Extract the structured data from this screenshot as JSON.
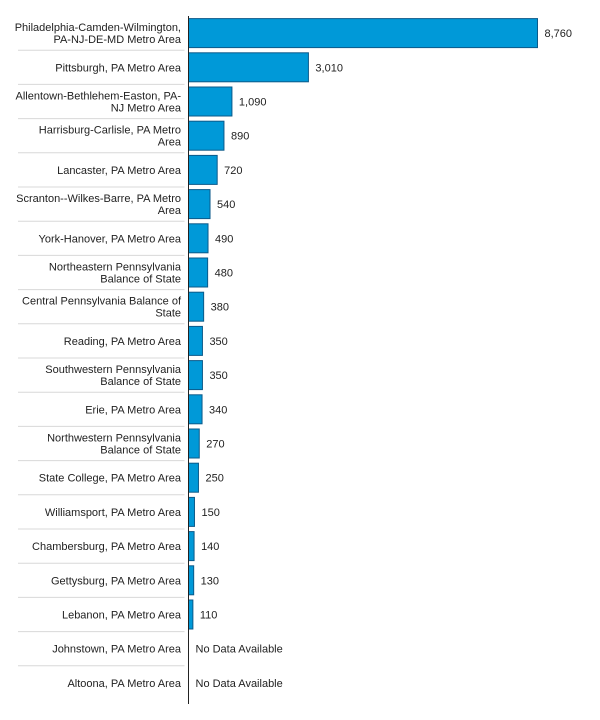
{
  "chart_data": {
    "type": "bar",
    "orientation": "horizontal",
    "title": "",
    "xlabel": "",
    "ylabel": "",
    "xlim": [
      0,
      8760
    ],
    "grid": false,
    "legend": "none",
    "bar_color": "#0099d8",
    "missing_label": "No Data Available",
    "categories": [
      [
        "Philadelphia-Camden-Wilmington,",
        "PA-NJ-DE-MD Metro Area"
      ],
      [
        "Pittsburgh, PA Metro Area"
      ],
      [
        "Allentown-Bethlehem-Easton, PA-",
        "NJ Metro Area"
      ],
      [
        "Harrisburg-Carlisle, PA Metro",
        "Area"
      ],
      [
        "Lancaster, PA Metro Area"
      ],
      [
        "Scranton--Wilkes-Barre, PA Metro",
        "Area"
      ],
      [
        "York-Hanover, PA Metro Area"
      ],
      [
        "Northeastern Pennsylvania",
        "Balance of State"
      ],
      [
        "Central Pennsylvania Balance of",
        "State"
      ],
      [
        "Reading, PA Metro Area"
      ],
      [
        "Southwestern Pennsylvania",
        "Balance of State"
      ],
      [
        "Erie, PA Metro Area"
      ],
      [
        "Northwestern Pennsylvania",
        "Balance of State"
      ],
      [
        "State College, PA Metro Area"
      ],
      [
        "Williamsport, PA Metro Area"
      ],
      [
        "Chambersburg, PA Metro Area"
      ],
      [
        "Gettysburg, PA Metro Area"
      ],
      [
        "Lebanon, PA Metro Area"
      ],
      [
        "Johnstown, PA Metro Area"
      ],
      [
        "Altoona, PA Metro Area"
      ]
    ],
    "values": [
      8760,
      3010,
      1090,
      890,
      720,
      540,
      490,
      480,
      380,
      350,
      350,
      340,
      270,
      250,
      150,
      140,
      130,
      110,
      null,
      null
    ],
    "value_labels": [
      "8,760",
      "3,010",
      "1,090",
      "890",
      "720",
      "540",
      "490",
      "480",
      "380",
      "350",
      "350",
      "340",
      "270",
      "250",
      "150",
      "140",
      "130",
      "110",
      "No Data Available",
      "No Data Available"
    ]
  }
}
